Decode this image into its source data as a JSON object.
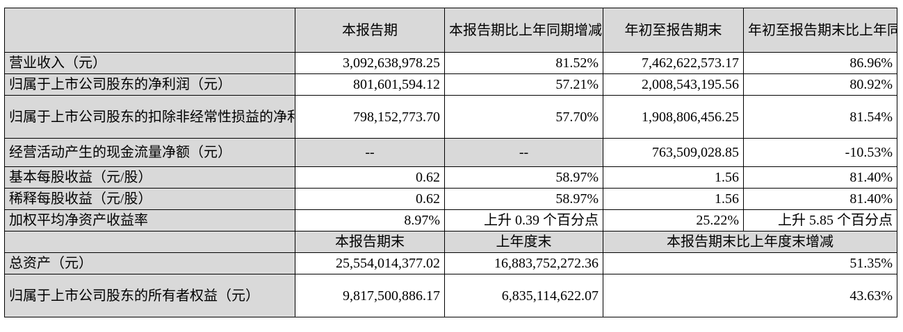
{
  "header": {
    "col1": "本报告期",
    "col2": "本报告期比上年同期增减",
    "col3": "年初至报告期末",
    "col4": "年初至报告期末比上年同期增减"
  },
  "rows": [
    {
      "label": "营业收入（元）",
      "v1": "3,092,638,978.25",
      "v2": "81.52%",
      "v3": "7,462,622,573.17",
      "v4": "86.96%"
    },
    {
      "label": "归属于上市公司股东的净利润（元）",
      "v1": "801,601,594.12",
      "v2": "57.21%",
      "v3": "2,008,543,195.56",
      "v4": "80.92%"
    },
    {
      "label": "归属于上市公司股东的扣除非经常性损益的净利润（元）",
      "v1": "798,152,773.70",
      "v2": "57.70%",
      "v3": "1,908,806,456.25",
      "v4": "81.54%"
    },
    {
      "label": "经营活动产生的现金流量净额（元）",
      "v1": "--",
      "v2": "--",
      "v3": "763,509,028.85",
      "v4": "-10.53%"
    },
    {
      "label": "基本每股收益（元/股）",
      "v1": "0.62",
      "v2": "58.97%",
      "v3": "1.56",
      "v4": "81.40%"
    },
    {
      "label": "稀释每股收益（元/股）",
      "v1": "0.62",
      "v2": "58.97%",
      "v3": "1.56",
      "v4": "81.40%"
    },
    {
      "label": "加权平均净资产收益率",
      "v1": "8.97%",
      "v2": "上升 0.39 个百分点",
      "v3": "25.22%",
      "v4": "上升 5.85 个百分点"
    }
  ],
  "subheader": {
    "col1": "本报告期末",
    "col2": "上年度末",
    "col3": "本报告期末比上年度末增减"
  },
  "rows2": [
    {
      "label": "总资产（元）",
      "v1": "25,554,014,377.02",
      "v2": "16,883,752,272.36",
      "v3": "51.35%"
    },
    {
      "label": "归属于上市公司股东的所有者权益（元）",
      "v1": "9,817,500,886.17",
      "v2": "6,835,114,622.07",
      "v3": "43.63%"
    }
  ]
}
